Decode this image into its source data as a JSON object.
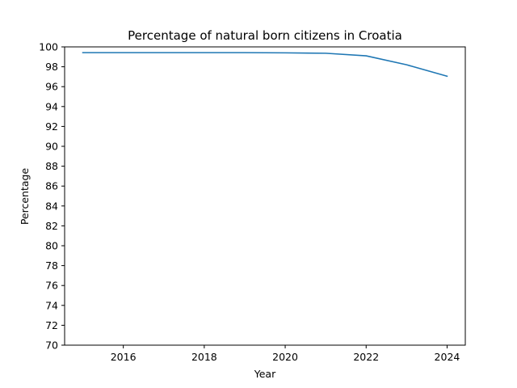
{
  "chart_data": {
    "type": "line",
    "title": "Percentage of natural born citizens in Croatia",
    "xlabel": "Year",
    "ylabel": "Percentage",
    "xlim": [
      2014.55,
      2024.45
    ],
    "ylim": [
      70,
      100
    ],
    "x_ticks": [
      2016,
      2018,
      2020,
      2022,
      2024
    ],
    "y_ticks": [
      70,
      72,
      74,
      76,
      78,
      80,
      82,
      84,
      86,
      88,
      90,
      92,
      94,
      96,
      98,
      100
    ],
    "grid": false,
    "series": [
      {
        "color": "#1f77b4",
        "x": [
          2015,
          2016,
          2017,
          2018,
          2019,
          2020,
          2021,
          2022,
          2023,
          2024
        ],
        "values": [
          99.42,
          99.42,
          99.42,
          99.42,
          99.42,
          99.4,
          99.36,
          99.1,
          98.2,
          97.05
        ]
      }
    ]
  }
}
